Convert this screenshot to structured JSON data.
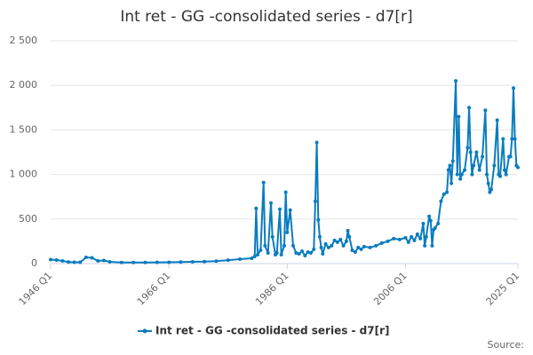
{
  "chart_data": {
    "type": "line",
    "title": "Int ret - GG -consolidated series - d7[r]",
    "source": "Source:",
    "x": [
      1946,
      1947,
      1948,
      1949,
      1950,
      1951,
      1952,
      1953,
      1954,
      1955,
      1956,
      1958,
      1960,
      1962,
      1964,
      1966,
      1968,
      1970,
      1972,
      1974,
      1976,
      1978,
      1980,
      1980.5,
      1980.75,
      1981,
      1981.5,
      1982,
      1982.25,
      1982.75,
      1983.25,
      1983.5,
      1984,
      1984.25,
      1984.75,
      1985,
      1985.5,
      1985.75,
      1986,
      1986.5,
      1987,
      1987.5,
      1988,
      1988.5,
      1989,
      1989.5,
      1990,
      1990.5,
      1990.75,
      1991,
      1991.25,
      1991.5,
      1991.75,
      1992,
      1992.5,
      1993,
      1993.5,
      1994,
      1994.5,
      1995,
      1995.5,
      1996,
      1996.25,
      1996.5,
      1997,
      1997.5,
      1998,
      1998.5,
      1999,
      2000,
      2001,
      2002,
      2003,
      2004,
      2005,
      2006,
      2006.5,
      2007,
      2007.5,
      2008,
      2008.5,
      2009,
      2009.25,
      2009.5,
      2010,
      2010.25,
      2010.5,
      2010.75,
      2011,
      2011.5,
      2012,
      2012.5,
      2013,
      2013.25,
      2013.5,
      2013.75,
      2014,
      2014.5,
      2014.75,
      2015,
      2015.25,
      2015.5,
      2016,
      2016.5,
      2016.75,
      2017,
      2017.25,
      2017.5,
      2018,
      2018.5,
      2019,
      2019.5,
      2019.75,
      2020,
      2020.25,
      2020.5,
      2021,
      2021.5,
      2021.75,
      2022,
      2022.5,
      2022.75,
      2023,
      2023.5,
      2023.75,
      2024,
      2024.25,
      2024.5,
      2024.75,
      2025
    ],
    "series": [
      {
        "name": "Int ret - GG -consolidated series - d7[r]",
        "color": "#0a7cc0",
        "values": [
          45,
          40,
          30,
          18,
          15,
          15,
          70,
          65,
          30,
          35,
          20,
          12,
          12,
          13,
          14,
          15,
          17,
          20,
          22,
          28,
          38,
          50,
          60,
          80,
          620,
          100,
          150,
          910,
          200,
          120,
          680,
          300,
          100,
          120,
          610,
          100,
          200,
          800,
          350,
          600,
          200,
          120,
          110,
          140,
          90,
          130,
          120,
          160,
          700,
          1360,
          490,
          300,
          180,
          110,
          220,
          180,
          200,
          260,
          240,
          270,
          200,
          250,
          370,
          300,
          150,
          130,
          180,
          160,
          190,
          180,
          200,
          230,
          250,
          280,
          270,
          290,
          240,
          300,
          260,
          330,
          280,
          450,
          200,
          300,
          530,
          480,
          200,
          380,
          400,
          450,
          700,
          780,
          800,
          1050,
          1100,
          900,
          1150,
          2050,
          1000,
          1650,
          950,
          1000,
          1050,
          1300,
          1750,
          1250,
          1000,
          1100,
          1250,
          1050,
          1200,
          1720,
          1000,
          900,
          800,
          830,
          1100,
          1610,
          1000,
          980,
          1400,
          1050,
          1000,
          1200,
          1200,
          1400,
          1970,
          1400,
          1100,
          1080
        ]
      }
    ],
    "xlim": [
      1946,
      2025
    ],
    "xticks": [
      {
        "value": 1946,
        "label": "1946 Q1"
      },
      {
        "value": 1966,
        "label": "1966 Q1"
      },
      {
        "value": 1986,
        "label": "1986 Q1"
      },
      {
        "value": 2006,
        "label": "2006 Q1"
      },
      {
        "value": 2025,
        "label": "2025 Q1"
      }
    ],
    "ylim": [
      0,
      2500
    ],
    "yticks": [
      0,
      500,
      {
        "value": 1000,
        "label": "1 000"
      },
      {
        "value": 1500,
        "label": "1 500"
      },
      {
        "value": 2000,
        "label": "2 000"
      },
      {
        "value": 2500,
        "label": "2 500"
      }
    ],
    "grid": true
  }
}
